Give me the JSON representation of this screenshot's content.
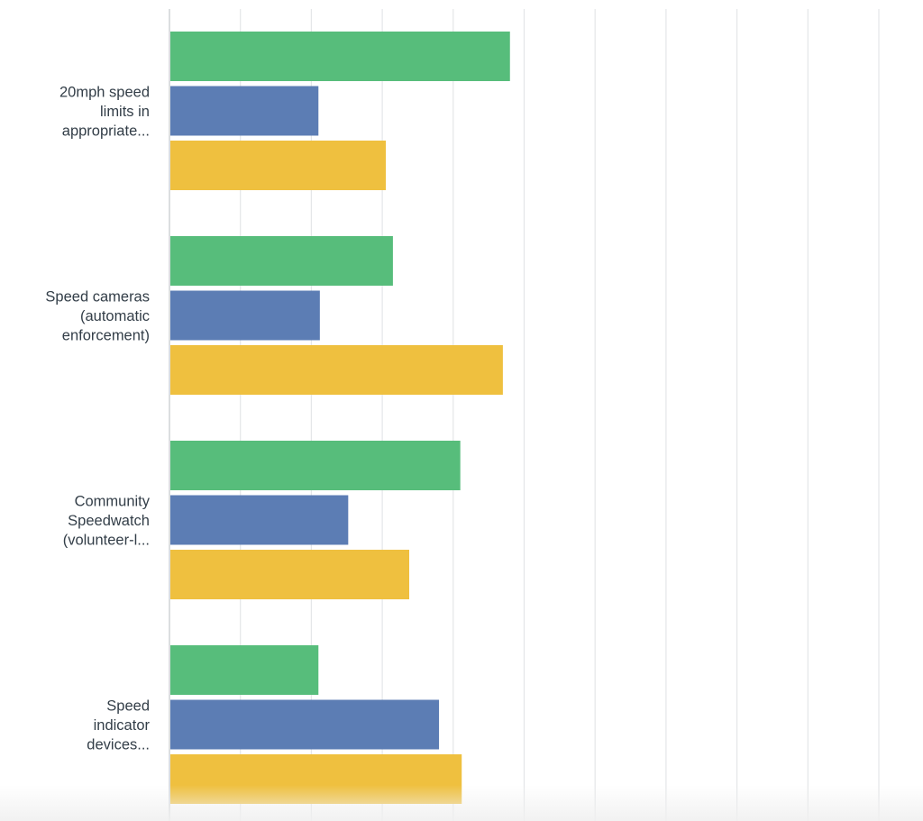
{
  "chart_data": {
    "type": "bar",
    "orientation": "horizontal",
    "categories": [
      [
        "20mph speed",
        "limits in",
        "appropriate..."
      ],
      [
        "Speed cameras",
        "(automatic",
        "enforcement)"
      ],
      [
        "Community",
        "Speedwatch",
        "(volunteer-l..."
      ],
      [
        "Speed",
        "indicator",
        "devices..."
      ]
    ],
    "series": [
      {
        "color": "#57bd7b",
        "values": [
          48,
          31.5,
          41,
          21
        ]
      },
      {
        "color": "#5c7db4",
        "values": [
          21,
          21.2,
          25.2,
          38
        ]
      },
      {
        "color": "#efc03f",
        "values": [
          30.5,
          47,
          33.8,
          41.2
        ]
      }
    ],
    "xlim": [
      0,
      100
    ],
    "grid": true,
    "tick_labels_visible": false,
    "legend": "none"
  }
}
